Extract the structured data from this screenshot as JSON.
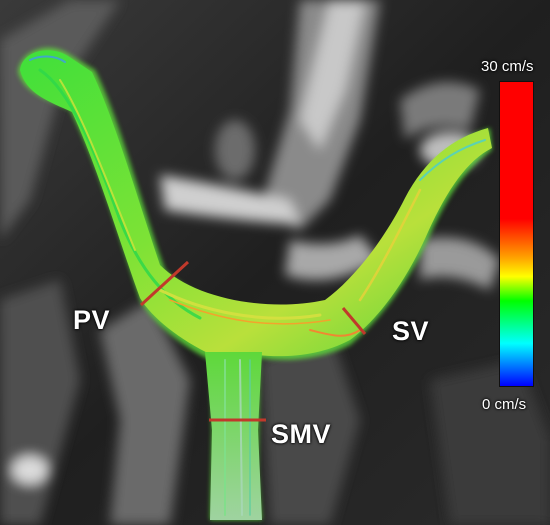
{
  "labels": {
    "pv": "PV",
    "sv": "SV",
    "smv": "SMV"
  },
  "colorbar": {
    "max_label": "30 cm/s",
    "min_label": "0 cm/s",
    "colors": [
      "#ff0000",
      "#ff0000",
      "#ffa500",
      "#ffff00",
      "#00ff00",
      "#00ffff",
      "#0000ff"
    ]
  },
  "colors": {
    "vessel_primary": "#3ee23a",
    "vessel_highlight": "#c8e63c",
    "marker_line": "#c0392b",
    "background": "#2b2b2b"
  }
}
